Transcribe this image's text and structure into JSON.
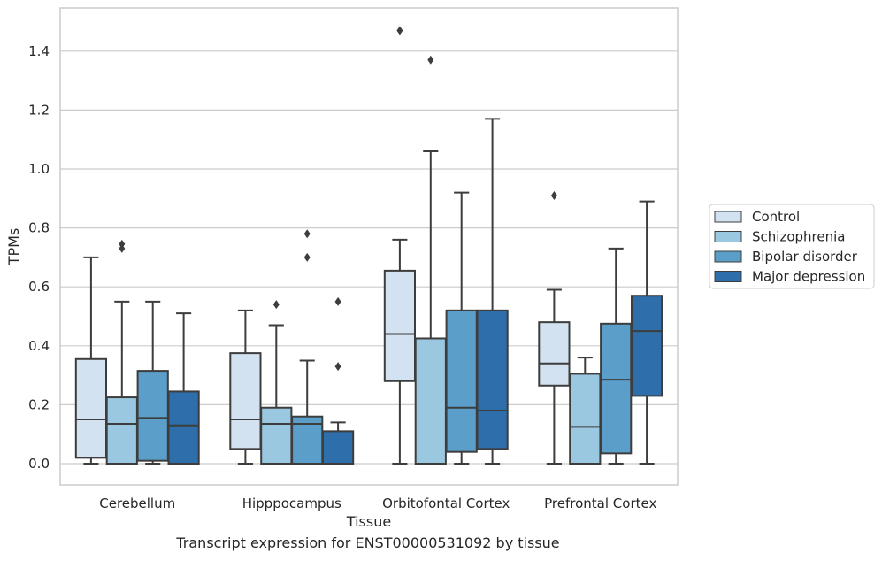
{
  "chart_data": {
    "type": "box",
    "title": "",
    "xlabel": "Tissue",
    "ylabel": "TPMs",
    "caption": "Transcript expression for ENST00000531092 by tissue",
    "ylim": [
      -0.07,
      1.55
    ],
    "yticks": [
      "0.0",
      "0.2",
      "0.4",
      "0.6",
      "0.8",
      "1.0",
      "1.2",
      "1.4"
    ],
    "grid": true,
    "legend_position": "right",
    "categories": [
      "Cerebellum",
      "Hipppocampus",
      "Orbitofontal Cortex",
      "Prefrontal Cortex"
    ],
    "series": [
      {
        "name": "Control",
        "color": "#d2e2f1",
        "boxes": [
          {
            "whislo": 0.0,
            "q1": 0.02,
            "med": 0.15,
            "q3": 0.355,
            "whishi": 0.7,
            "fliers": []
          },
          {
            "whislo": 0.0,
            "q1": 0.05,
            "med": 0.15,
            "q3": 0.375,
            "whishi": 0.52,
            "fliers": []
          },
          {
            "whislo": 0.0,
            "q1": 0.28,
            "med": 0.44,
            "q3": 0.655,
            "whishi": 0.76,
            "fliers": [
              1.47
            ]
          },
          {
            "whislo": 0.0,
            "q1": 0.265,
            "med": 0.34,
            "q3": 0.48,
            "whishi": 0.59,
            "fliers": [
              0.91
            ]
          }
        ]
      },
      {
        "name": "Schizophrenia",
        "color": "#9ac8e0",
        "boxes": [
          {
            "whislo": 0.0,
            "q1": 0.0,
            "med": 0.135,
            "q3": 0.225,
            "whishi": 0.55,
            "fliers": [
              0.73,
              0.745
            ]
          },
          {
            "whislo": 0.0,
            "q1": 0.0,
            "med": 0.135,
            "q3": 0.19,
            "whishi": 0.47,
            "fliers": [
              0.54
            ]
          },
          {
            "whislo": 0.0,
            "q1": 0.0,
            "med": 0.0,
            "q3": 0.425,
            "whishi": 1.06,
            "fliers": [
              1.37
            ]
          },
          {
            "whislo": 0.0,
            "q1": 0.0,
            "med": 0.125,
            "q3": 0.305,
            "whishi": 0.36,
            "fliers": []
          }
        ]
      },
      {
        "name": "Bipolar disorder",
        "color": "#5a9ec9",
        "boxes": [
          {
            "whislo": 0.0,
            "q1": 0.01,
            "med": 0.155,
            "q3": 0.315,
            "whishi": 0.55,
            "fliers": []
          },
          {
            "whislo": 0.0,
            "q1": 0.0,
            "med": 0.135,
            "q3": 0.16,
            "whishi": 0.35,
            "fliers": [
              0.7,
              0.78
            ]
          },
          {
            "whislo": 0.0,
            "q1": 0.04,
            "med": 0.19,
            "q3": 0.52,
            "whishi": 0.92,
            "fliers": []
          },
          {
            "whislo": 0.0,
            "q1": 0.035,
            "med": 0.285,
            "q3": 0.475,
            "whishi": 0.73,
            "fliers": []
          }
        ]
      },
      {
        "name": "Major depression",
        "color": "#2d6eab",
        "boxes": [
          {
            "whislo": 0.0,
            "q1": 0.0,
            "med": 0.13,
            "q3": 0.245,
            "whishi": 0.51,
            "fliers": []
          },
          {
            "whislo": 0.0,
            "q1": 0.0,
            "med": 0.0,
            "q3": 0.11,
            "whishi": 0.14,
            "fliers": [
              0.33,
              0.55
            ]
          },
          {
            "whislo": 0.0,
            "q1": 0.05,
            "med": 0.18,
            "q3": 0.52,
            "whishi": 1.17,
            "fliers": []
          },
          {
            "whislo": 0.0,
            "q1": 0.23,
            "med": 0.45,
            "q3": 0.57,
            "whishi": 0.89,
            "fliers": []
          }
        ]
      }
    ]
  }
}
